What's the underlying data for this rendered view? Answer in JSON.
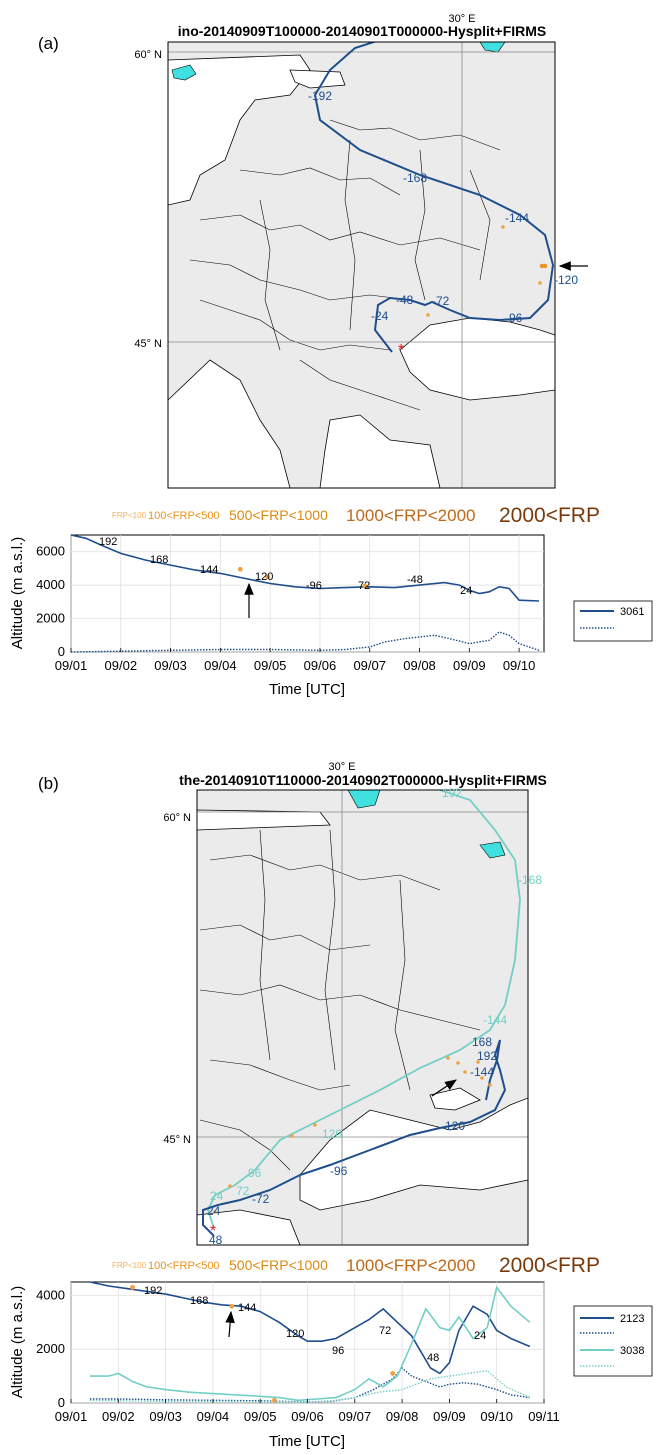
{
  "chart_data": [
    {
      "type": "map",
      "panel_label": "(a)",
      "title": "ino-20140909T100000-20140901T000000-Hysplit+FIRMS",
      "lon_label": "30° E",
      "lat_labels": [
        "60° N",
        "45° N"
      ],
      "trajectory_labels": [
        "-192",
        "-168",
        "-144",
        "-120",
        "-96",
        "-72",
        "-48",
        "-24"
      ],
      "colors": {
        "trajectory": "#1f4e8c",
        "fire": "#f0a040",
        "arrow": "#000000",
        "land": "#ebebeb",
        "lake": "#40e0e0"
      }
    },
    {
      "type": "legend",
      "items": [
        "FRP<100",
        "100<FRP<500",
        "500<FRP<1000",
        "1000<FRP<2000",
        "2000<FRP"
      ],
      "colors": [
        "#f4b060",
        "#e9941e",
        "#d98a10",
        "#c06818",
        "#7a3a0a"
      ]
    },
    {
      "type": "line",
      "ylabel": "Altitude  (m a.s.l.)",
      "xlabel": "Time [UTC]",
      "x_ticks": [
        "09/01",
        "09/02",
        "09/03",
        "09/04",
        "09/05",
        "09/06",
        "09/07",
        "09/08",
        "09/09",
        "09/10"
      ],
      "y_ticks": [
        "0",
        "2000",
        "4000",
        "6000"
      ],
      "xlim": [
        0,
        9.5
      ],
      "ylim": [
        0,
        7000
      ],
      "legend": [
        "3061"
      ],
      "series": [
        {
          "name": "3061",
          "style": "solid",
          "color": "#1f4e8c",
          "x": [
            0,
            0.3,
            0.6,
            1.0,
            1.5,
            2.0,
            2.5,
            3.0,
            3.5,
            4.0,
            4.5,
            5.0,
            5.5,
            6.0,
            6.5,
            7.0,
            7.5,
            7.8,
            8.0,
            8.2,
            8.4,
            8.6,
            8.8,
            9.0,
            9.4
          ],
          "y": [
            7000,
            6800,
            6400,
            5900,
            5500,
            5200,
            4900,
            4700,
            4400,
            4100,
            3900,
            3800,
            3850,
            3900,
            3850,
            4000,
            4150,
            4000,
            3700,
            3500,
            3600,
            3900,
            3800,
            3100,
            3050
          ]
        },
        {
          "style": "dotted",
          "color": "#1f4e8c",
          "x": [
            0,
            1,
            2,
            3,
            4,
            5,
            5.5,
            6,
            6.3,
            6.7,
            7.0,
            7.3,
            7.6,
            8.0,
            8.4,
            8.6,
            8.8,
            9.0,
            9.4
          ],
          "y": [
            0,
            50,
            100,
            150,
            150,
            100,
            150,
            300,
            600,
            800,
            900,
            1000,
            800,
            500,
            700,
            1200,
            1000,
            500,
            100
          ]
        }
      ],
      "annotations": [
        "192",
        "168",
        "144",
        "120",
        "-96",
        "72",
        "-48",
        "24"
      ],
      "fire_points": [
        {
          "x": 3.4,
          "y": 4950
        },
        {
          "x": 3.95,
          "y": 4500
        },
        {
          "x": 5.9,
          "y": 3950
        }
      ]
    },
    {
      "type": "map",
      "panel_label": "(b)",
      "title": "the-20140910T110000-20140902T000000-Hysplit+FIRMS",
      "lon_label": "30° E",
      "lat_labels": [
        "60° N",
        "45° N"
      ],
      "trajectory_labels_dark": [
        "168",
        "192",
        "-144",
        "120",
        "-96",
        "-72",
        "24",
        "48"
      ],
      "trajectory_labels_light": [
        "192",
        "-168",
        "-144",
        "120",
        "96",
        "72",
        "24"
      ],
      "colors": {
        "trajectory_dark": "#1f4e8c",
        "trajectory_light": "#72cfc6",
        "fire": "#f0a040",
        "arrow": "#000000",
        "land": "#ebebeb",
        "lake": "#40e0e0"
      }
    },
    {
      "type": "legend",
      "items": [
        "FRP<100",
        "100<FRP<500",
        "500<FRP<1000",
        "1000<FRP<2000",
        "2000<FRP"
      ],
      "colors": [
        "#f4b060",
        "#e9941e",
        "#d98a10",
        "#c06818",
        "#7a3a0a"
      ]
    },
    {
      "type": "line",
      "ylabel": "Altitude  (m a.s.l.)",
      "xlabel": "Time [UTC]",
      "x_ticks": [
        "09/01",
        "09/02",
        "09/03",
        "09/04",
        "09/05",
        "09/06",
        "09/07",
        "09/08",
        "09/09",
        "09/10",
        "09/11"
      ],
      "y_ticks": [
        "0",
        "2000",
        "4000"
      ],
      "xlim": [
        0,
        10
      ],
      "ylim": [
        0,
        4500
      ],
      "legend": [
        "2123",
        "3038"
      ],
      "series": [
        {
          "name": "2123",
          "style": "solid",
          "color": "#1f4e8c",
          "x": [
            0.4,
            0.8,
            1.2,
            1.6,
            2.0,
            2.4,
            2.8,
            3.2,
            3.6,
            4.0,
            4.4,
            4.8,
            5.0,
            5.3,
            5.6,
            6.0,
            6.3,
            6.6,
            6.9,
            7.2,
            7.6,
            7.8,
            8.0,
            8.2,
            8.5,
            8.8,
            9.0,
            9.3,
            9.7
          ],
          "y": [
            4500,
            4350,
            4250,
            4150,
            4050,
            3900,
            3750,
            3650,
            3600,
            3400,
            3000,
            2500,
            2300,
            2300,
            2400,
            2800,
            3100,
            3500,
            3000,
            2500,
            1300,
            1100,
            1500,
            2700,
            3600,
            3300,
            2700,
            2400,
            2100
          ]
        },
        {
          "style": "dotted",
          "color": "#1f4e8c",
          "x": [
            0.4,
            1,
            2,
            3,
            4,
            4.5,
            5,
            5.5,
            6,
            6.4,
            6.8,
            7.0,
            7.2,
            7.5,
            7.8,
            8.0,
            8.3,
            8.6,
            9.0,
            9.3,
            9.7
          ],
          "y": [
            150,
            150,
            120,
            100,
            80,
            60,
            40,
            60,
            200,
            500,
            900,
            1300,
            1000,
            800,
            600,
            700,
            750,
            700,
            500,
            300,
            200
          ]
        },
        {
          "name": "3038",
          "style": "solid",
          "color": "#72cfc6",
          "x": [
            0.4,
            0.8,
            1.0,
            1.3,
            1.6,
            2.0,
            2.5,
            3.0,
            3.5,
            4.0,
            4.4,
            4.8,
            5.2,
            5.6,
            6.0,
            6.3,
            6.6,
            6.9,
            7.2,
            7.5,
            7.8,
            8.0,
            8.2,
            8.5,
            8.8,
            9.0,
            9.3,
            9.7
          ],
          "y": [
            1000,
            1000,
            1100,
            800,
            600,
            500,
            400,
            350,
            300,
            250,
            200,
            100,
            150,
            200,
            500,
            900,
            600,
            1000,
            2200,
            3500,
            2800,
            2700,
            3200,
            2400,
            2800,
            4300,
            3600,
            3000
          ]
        },
        {
          "style": "dotted",
          "color": "#72cfc6",
          "x": [
            0.4,
            1,
            2,
            3,
            4,
            4.5,
            5,
            5.5,
            6,
            6.5,
            7.0,
            7.3,
            7.6,
            8.0,
            8.4,
            8.8,
            9.2,
            9.7
          ],
          "y": [
            100,
            80,
            60,
            60,
            50,
            40,
            30,
            80,
            200,
            400,
            500,
            700,
            900,
            1000,
            1100,
            1200,
            600,
            200
          ]
        }
      ],
      "annotations": [
        "192",
        "168",
        "144",
        "120",
        "96",
        "72",
        "48",
        "24"
      ],
      "fire_points": [
        {
          "x": 1.3,
          "y": 4300
        },
        {
          "x": 3.4,
          "y": 3600
        },
        {
          "x": 4.3,
          "y": 100
        },
        {
          "x": 6.8,
          "y": 1100
        }
      ]
    }
  ]
}
